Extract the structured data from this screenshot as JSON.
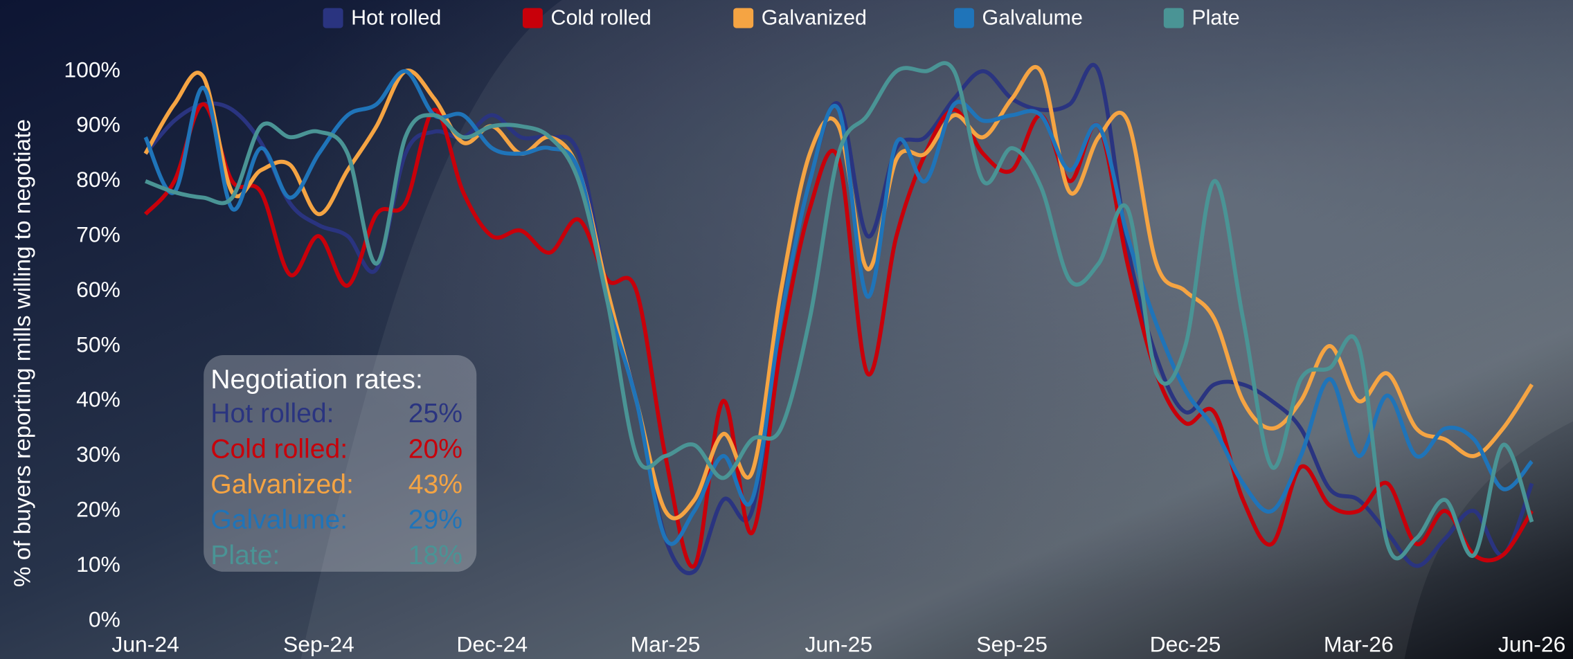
{
  "chart_data": {
    "type": "line",
    "y_label": "% of buyers reporting mills willing to negotiate",
    "categories": [
      "Jun-24",
      null,
      null,
      null,
      null,
      null,
      "Sep-24",
      null,
      null,
      null,
      null,
      null,
      "Dec-24",
      null,
      null,
      null,
      null,
      null,
      "Mar-25",
      null,
      null,
      null,
      null,
      null,
      "Jun-25",
      null,
      null,
      null,
      null,
      null,
      "Sep-25",
      null,
      null,
      null,
      null,
      null,
      "Dec-25",
      null,
      null,
      null,
      null,
      null,
      "Mar-26",
      null,
      null,
      null,
      null,
      null,
      "Jun-26"
    ],
    "ylim": [
      0,
      100
    ],
    "yticks": [
      {
        "value": 0,
        "label": "0%"
      },
      {
        "value": 10,
        "label": "10%"
      },
      {
        "value": 20,
        "label": "20%"
      },
      {
        "value": 30,
        "label": "30%"
      },
      {
        "value": 40,
        "label": "40%"
      },
      {
        "value": 50,
        "label": "50%"
      },
      {
        "value": 60,
        "label": "60%"
      },
      {
        "value": 70,
        "label": "70%"
      },
      {
        "value": 80,
        "label": "80%"
      },
      {
        "value": 90,
        "label": "90%"
      },
      {
        "value": 100,
        "label": "100%"
      }
    ],
    "grid": false,
    "legend": "top",
    "series": [
      {
        "name": "Hot rolled",
        "color": "#2a3480",
        "values": [
          85,
          91,
          94,
          93,
          87,
          76,
          72,
          70,
          64,
          85,
          89,
          88,
          92,
          88,
          88,
          85,
          60,
          40,
          15,
          9,
          22,
          20,
          55,
          80,
          94,
          70,
          86,
          88,
          95,
          100,
          95,
          93,
          94,
          100,
          68,
          48,
          38,
          43,
          43,
          40,
          35,
          24,
          22,
          16,
          10,
          15,
          20,
          12,
          25
        ]
      },
      {
        "name": "Cold rolled",
        "color": "#c8000a",
        "values": [
          74,
          80,
          94,
          80,
          78,
          63,
          70,
          61,
          74,
          76,
          93,
          78,
          70,
          71,
          67,
          73,
          62,
          60,
          30,
          10,
          40,
          16,
          50,
          75,
          84,
          45,
          70,
          85,
          93,
          85,
          82,
          92,
          80,
          90,
          65,
          45,
          36,
          38,
          22,
          14,
          28,
          21,
          20,
          25,
          14,
          20,
          12,
          12,
          20
        ]
      },
      {
        "name": "Galvanized",
        "color": "#f5a443",
        "values": [
          85,
          94,
          99,
          78,
          82,
          83,
          74,
          82,
          90,
          100,
          95,
          87,
          90,
          85,
          88,
          82,
          60,
          40,
          20,
          22,
          34,
          27,
          60,
          85,
          90,
          64,
          84,
          85,
          92,
          88,
          95,
          100,
          78,
          88,
          91,
          65,
          60,
          55,
          40,
          35,
          40,
          50,
          40,
          45,
          35,
          33,
          30,
          35,
          43
        ]
      },
      {
        "name": "Galvalume",
        "color": "#1f74b9",
        "values": [
          88,
          78,
          97,
          75,
          86,
          77,
          85,
          92,
          94,
          100,
          92,
          92,
          86,
          85,
          86,
          82,
          58,
          40,
          15,
          20,
          30,
          22,
          55,
          80,
          93,
          59,
          87,
          80,
          94,
          91,
          92,
          92,
          82,
          90,
          70,
          54,
          42,
          35,
          25,
          20,
          30,
          44,
          30,
          41,
          30,
          35,
          33,
          24,
          29
        ]
      },
      {
        "name": "Plate",
        "color": "#4a9495",
        "values": [
          80,
          78,
          77,
          77,
          90,
          88,
          89,
          85,
          65,
          88,
          92,
          88,
          90,
          90,
          88,
          80,
          58,
          30,
          30,
          32,
          26,
          33,
          35,
          55,
          85,
          92,
          100,
          100,
          100,
          80,
          86,
          79,
          62,
          65,
          75,
          45,
          50,
          80,
          55,
          28,
          44,
          46,
          50,
          14,
          15,
          22,
          12,
          32,
          18
        ]
      }
    ],
    "annotation": {
      "title": "Negotiation rates:",
      "rows": [
        {
          "label": "Hot rolled:",
          "value": "25%"
        },
        {
          "label": "Cold rolled:",
          "value": "20%"
        },
        {
          "label": "Galvanized:",
          "value": "43%"
        },
        {
          "label": "Galvalume:",
          "value": "29%"
        },
        {
          "label": "Plate:",
          "value": "18%"
        }
      ]
    }
  }
}
